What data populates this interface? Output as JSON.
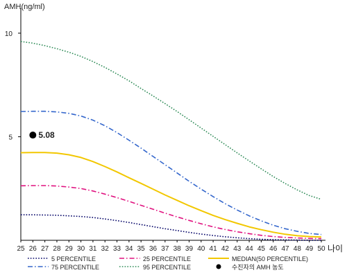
{
  "chart_data": {
    "type": "line",
    "ylabel": "AMH(ng/ml)",
    "xlabel": "나이",
    "xlim": [
      25,
      50
    ],
    "ylim": [
      0,
      11
    ],
    "y_ticks": [
      5,
      10
    ],
    "x_ticks": [
      25,
      26,
      27,
      28,
      29,
      30,
      31,
      32,
      33,
      34,
      35,
      36,
      37,
      38,
      39,
      40,
      41,
      42,
      43,
      44,
      45,
      46,
      47,
      48,
      49,
      50
    ],
    "grid": false,
    "legend_position": "bottom",
    "series": [
      {
        "name": "5 PERCENTILE",
        "color": "#000066",
        "dash": "dot",
        "points": [
          [
            25,
            1.23
          ],
          [
            26,
            1.23
          ],
          [
            27,
            1.22
          ],
          [
            28,
            1.21
          ],
          [
            29,
            1.18
          ],
          [
            30,
            1.15
          ],
          [
            31,
            1.1
          ],
          [
            32,
            1.03
          ],
          [
            33,
            0.95
          ],
          [
            34,
            0.86
          ],
          [
            35,
            0.76
          ],
          [
            36,
            0.66
          ],
          [
            37,
            0.56
          ],
          [
            38,
            0.47
          ],
          [
            39,
            0.38
          ],
          [
            40,
            0.3
          ],
          [
            41,
            0.23
          ],
          [
            42,
            0.17
          ],
          [
            43,
            0.12
          ],
          [
            44,
            0.08
          ],
          [
            45,
            0.05
          ],
          [
            46,
            0.03
          ],
          [
            47,
            0.02
          ],
          [
            48,
            0.01
          ],
          [
            49,
            0.0
          ],
          [
            50,
            0.0
          ]
        ]
      },
      {
        "name": "75 PERCENTILE",
        "color": "#3366cc",
        "dash": "dashdot",
        "points": [
          [
            25,
            6.22
          ],
          [
            26,
            6.23
          ],
          [
            27,
            6.23
          ],
          [
            28,
            6.2
          ],
          [
            29,
            6.13
          ],
          [
            30,
            6.0
          ],
          [
            31,
            5.8
          ],
          [
            32,
            5.53
          ],
          [
            33,
            5.2
          ],
          [
            34,
            4.83
          ],
          [
            35,
            4.45
          ],
          [
            36,
            4.05
          ],
          [
            37,
            3.65
          ],
          [
            38,
            3.25
          ],
          [
            39,
            2.85
          ],
          [
            40,
            2.47
          ],
          [
            41,
            2.11
          ],
          [
            42,
            1.77
          ],
          [
            43,
            1.46
          ],
          [
            44,
            1.18
          ],
          [
            45,
            0.94
          ],
          [
            46,
            0.73
          ],
          [
            47,
            0.56
          ],
          [
            48,
            0.43
          ],
          [
            49,
            0.33
          ],
          [
            50,
            0.28
          ]
        ]
      },
      {
        "name": "25 PERCENTILE",
        "color": "#e0117f",
        "dash": "dashdot",
        "points": [
          [
            25,
            2.63
          ],
          [
            26,
            2.64
          ],
          [
            27,
            2.64
          ],
          [
            28,
            2.62
          ],
          [
            29,
            2.57
          ],
          [
            30,
            2.5
          ],
          [
            31,
            2.38
          ],
          [
            32,
            2.23
          ],
          [
            33,
            2.06
          ],
          [
            34,
            1.88
          ],
          [
            35,
            1.69
          ],
          [
            36,
            1.5
          ],
          [
            37,
            1.31
          ],
          [
            38,
            1.13
          ],
          [
            39,
            0.96
          ],
          [
            40,
            0.8
          ],
          [
            41,
            0.65
          ],
          [
            42,
            0.52
          ],
          [
            43,
            0.41
          ],
          [
            44,
            0.32
          ],
          [
            45,
            0.24
          ],
          [
            46,
            0.18
          ],
          [
            47,
            0.14
          ],
          [
            48,
            0.11
          ],
          [
            49,
            0.09
          ],
          [
            50,
            0.08
          ]
        ]
      },
      {
        "name": "95 PERCENTILE",
        "color": "#2e8b57",
        "dash": "dot",
        "points": [
          [
            25,
            9.6
          ],
          [
            26,
            9.52
          ],
          [
            27,
            9.4
          ],
          [
            28,
            9.25
          ],
          [
            29,
            9.08
          ],
          [
            30,
            8.88
          ],
          [
            31,
            8.63
          ],
          [
            32,
            8.35
          ],
          [
            33,
            8.03
          ],
          [
            34,
            7.7
          ],
          [
            35,
            7.33
          ],
          [
            36,
            6.97
          ],
          [
            37,
            6.6
          ],
          [
            38,
            6.22
          ],
          [
            39,
            5.82
          ],
          [
            40,
            5.42
          ],
          [
            41,
            5.02
          ],
          [
            42,
            4.62
          ],
          [
            43,
            4.22
          ],
          [
            44,
            3.83
          ],
          [
            45,
            3.45
          ],
          [
            46,
            3.08
          ],
          [
            47,
            2.74
          ],
          [
            48,
            2.43
          ],
          [
            49,
            2.16
          ],
          [
            50,
            1.98
          ]
        ]
      },
      {
        "name": "MEDIAN(50 PERCENTILE)",
        "color": "#f2c700",
        "dash": "solid",
        "points": [
          [
            25,
            4.23
          ],
          [
            26,
            4.24
          ],
          [
            27,
            4.24
          ],
          [
            28,
            4.21
          ],
          [
            29,
            4.13
          ],
          [
            30,
            4.0
          ],
          [
            31,
            3.8
          ],
          [
            32,
            3.56
          ],
          [
            33,
            3.3
          ],
          [
            34,
            3.02
          ],
          [
            35,
            2.75
          ],
          [
            36,
            2.47
          ],
          [
            37,
            2.19
          ],
          [
            38,
            1.93
          ],
          [
            39,
            1.67
          ],
          [
            40,
            1.43
          ],
          [
            41,
            1.2
          ],
          [
            42,
            1.0
          ],
          [
            43,
            0.82
          ],
          [
            44,
            0.65
          ],
          [
            45,
            0.51
          ],
          [
            46,
            0.39
          ],
          [
            47,
            0.29
          ],
          [
            48,
            0.22
          ],
          [
            49,
            0.18
          ],
          [
            50,
            0.16
          ]
        ]
      }
    ],
    "marker": {
      "name": "수진자의 AMH 농도",
      "x": 26,
      "y": 5.08,
      "label": "5.08",
      "color": "#000000"
    },
    "legend": [
      {
        "label": "5 PERCENTILE",
        "color": "#000066",
        "dash": "dot"
      },
      {
        "label": "25 PERCENTILE",
        "color": "#e0117f",
        "dash": "dashdot"
      },
      {
        "label": "MEDIAN(50 PERCENTILE)",
        "color": "#f2c700",
        "dash": "solid"
      },
      {
        "label": "75 PERCENTILE",
        "color": "#3366cc",
        "dash": "dashdot"
      },
      {
        "label": "95 PERCENTILE",
        "color": "#2e8b57",
        "dash": "dot"
      },
      {
        "label": "수진자의 AMH 농도",
        "color": "#000000",
        "dash": "marker"
      }
    ]
  }
}
